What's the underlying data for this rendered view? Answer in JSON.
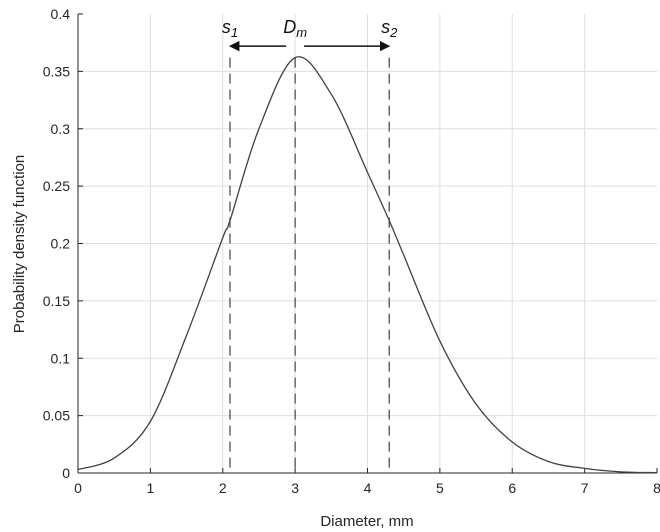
{
  "chart_data": {
    "type": "line",
    "title": "",
    "xlabel": "Diameter, mm",
    "ylabel": "Probability density function",
    "xlim": [
      0,
      8
    ],
    "ylim": [
      0,
      0.4
    ],
    "x_ticks": [
      "0",
      "1",
      "2",
      "3",
      "4",
      "5",
      "6",
      "7",
      "8"
    ],
    "y_ticks": [
      "0",
      "0.05",
      "0.1",
      "0.15",
      "0.2",
      "0.25",
      "0.3",
      "0.35",
      "0.4"
    ],
    "grid": true,
    "legend": "none",
    "series": [
      {
        "x": [
          0,
          0.5,
          1.0,
          1.5,
          2.0,
          2.1,
          2.5,
          3.0,
          3.5,
          4.0,
          4.3,
          4.5,
          5.0,
          5.5,
          6.0,
          6.5,
          7.0,
          7.5,
          8.0
        ],
        "values": [
          0.003,
          0.013,
          0.045,
          0.12,
          0.205,
          0.22,
          0.3,
          0.362,
          0.33,
          0.262,
          0.22,
          0.19,
          0.115,
          0.06,
          0.027,
          0.01,
          0.004,
          0.001,
          0.0003
        ],
        "color": "#404040"
      }
    ],
    "annotations": [
      {
        "label": "s",
        "sub": "1",
        "x": 2.1,
        "style": "dashed-vertical"
      },
      {
        "label": "D",
        "sub": "m",
        "x": 3.0,
        "style": "dashed-vertical"
      },
      {
        "label": "s",
        "sub": "2",
        "x": 4.3,
        "style": "dashed-vertical"
      }
    ],
    "arrows": [
      {
        "from_x": 3.0,
        "to_x": 2.1,
        "y": 0.372
      },
      {
        "from_x": 3.0,
        "to_x": 4.3,
        "y": 0.372
      }
    ],
    "curve_color": "#404040",
    "grid_color": "#dfdfdf"
  }
}
